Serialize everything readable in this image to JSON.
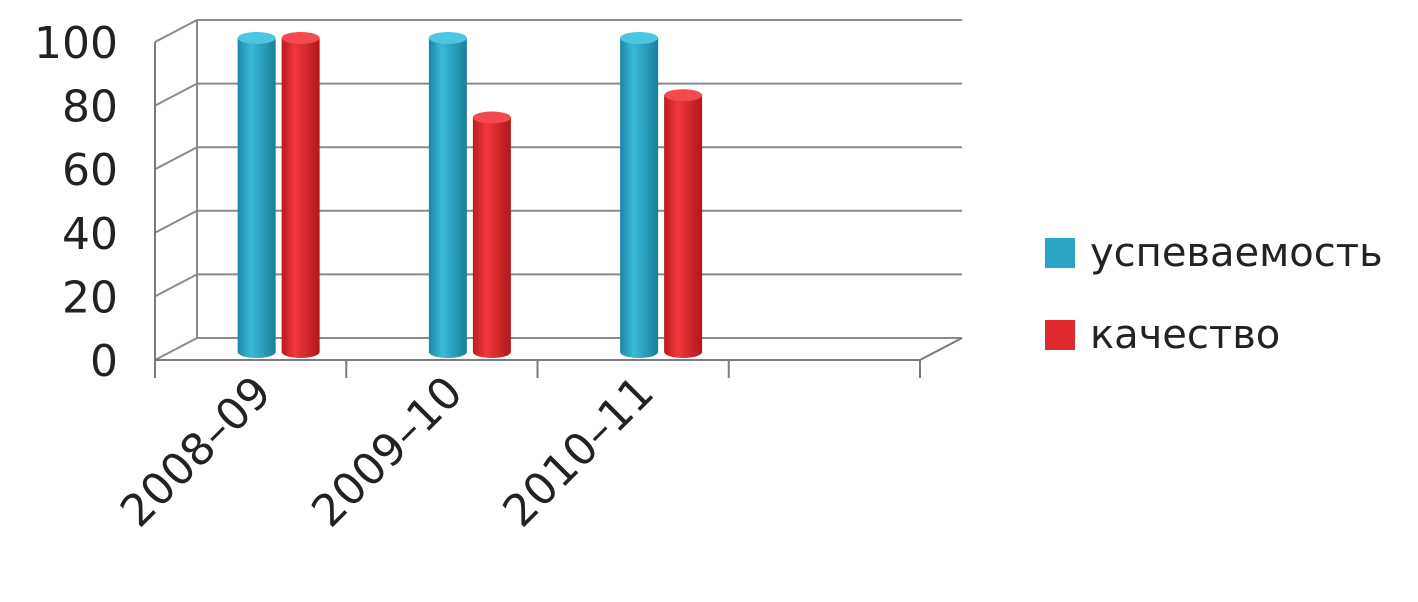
{
  "chart_data": {
    "type": "bar",
    "categories": [
      "2008–09",
      "2009–10",
      "2010–11",
      ""
    ],
    "series": [
      {
        "name": "успеваемость",
        "values": [
          100,
          100,
          100,
          null
        ],
        "color": "#2aa3c4"
      },
      {
        "name": "качество",
        "values": [
          100,
          75,
          82,
          null
        ],
        "color": "#e02a2e"
      }
    ],
    "yticks": [
      0,
      20,
      40,
      60,
      80,
      100
    ],
    "ylim": [
      0,
      100
    ],
    "grid": true,
    "legend_position": "right",
    "style": "3d-cylinder"
  }
}
